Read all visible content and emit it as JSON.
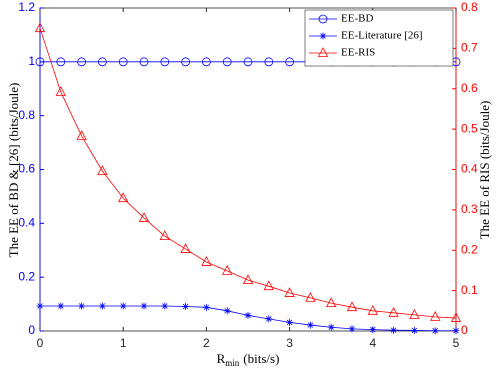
{
  "chart_data": {
    "type": "line",
    "xlabel": "R",
    "xlabel_sub": "min",
    "xlabel_unit": "(bits/s)",
    "ylabel": "The EE of BD & [26] (bits/Joule)",
    "y2label": "The EE of RIS (bits/Joule)",
    "x": [
      0,
      0.25,
      0.5,
      0.75,
      1,
      1.25,
      1.5,
      1.75,
      2,
      2.25,
      2.5,
      2.75,
      3,
      3.25,
      3.5,
      3.75,
      4,
      4.25,
      4.5,
      4.75,
      5
    ],
    "xlim": [
      0,
      5
    ],
    "xticks": [
      0,
      1,
      2,
      3,
      4,
      5
    ],
    "ylim": [
      0,
      1.2
    ],
    "yticks": [
      0,
      0.2,
      0.4,
      0.6,
      0.8,
      1,
      1.2
    ],
    "y2lim": [
      0,
      0.8
    ],
    "y2ticks": [
      0,
      0.1,
      0.2,
      0.3,
      0.4,
      0.5,
      0.6,
      0.7,
      0.8
    ],
    "y_color": "#0000ff",
    "y2_color": "#ff0000",
    "legend": "top-right",
    "grid": false,
    "series": [
      {
        "name": "EE-BD",
        "color": "#0000ff",
        "marker": "circle",
        "values": [
          1,
          1,
          1,
          1,
          1,
          1,
          1,
          1,
          1,
          1,
          1,
          1,
          1,
          1,
          1,
          1,
          1,
          1,
          1,
          1,
          1
        ]
      },
      {
        "name": "EE-Literature [26]",
        "color": "#0000ff",
        "marker": "star",
        "values": [
          0.093,
          0.093,
          0.093,
          0.093,
          0.093,
          0.093,
          0.093,
          0.091,
          0.088,
          0.075,
          0.058,
          0.045,
          0.032,
          0.022,
          0.014,
          0.008,
          0.005,
          0.003,
          0.002,
          0.001,
          0.001
        ]
      },
      {
        "name": "EE-RIS",
        "color": "#ff0000",
        "marker": "triangle",
        "axis": "y2",
        "values": [
          0.75,
          0.592,
          0.483,
          0.396,
          0.329,
          0.28,
          0.235,
          0.203,
          0.171,
          0.149,
          0.126,
          0.111,
          0.094,
          0.082,
          0.069,
          0.059,
          0.05,
          0.045,
          0.04,
          0.035,
          0.032
        ]
      }
    ]
  }
}
